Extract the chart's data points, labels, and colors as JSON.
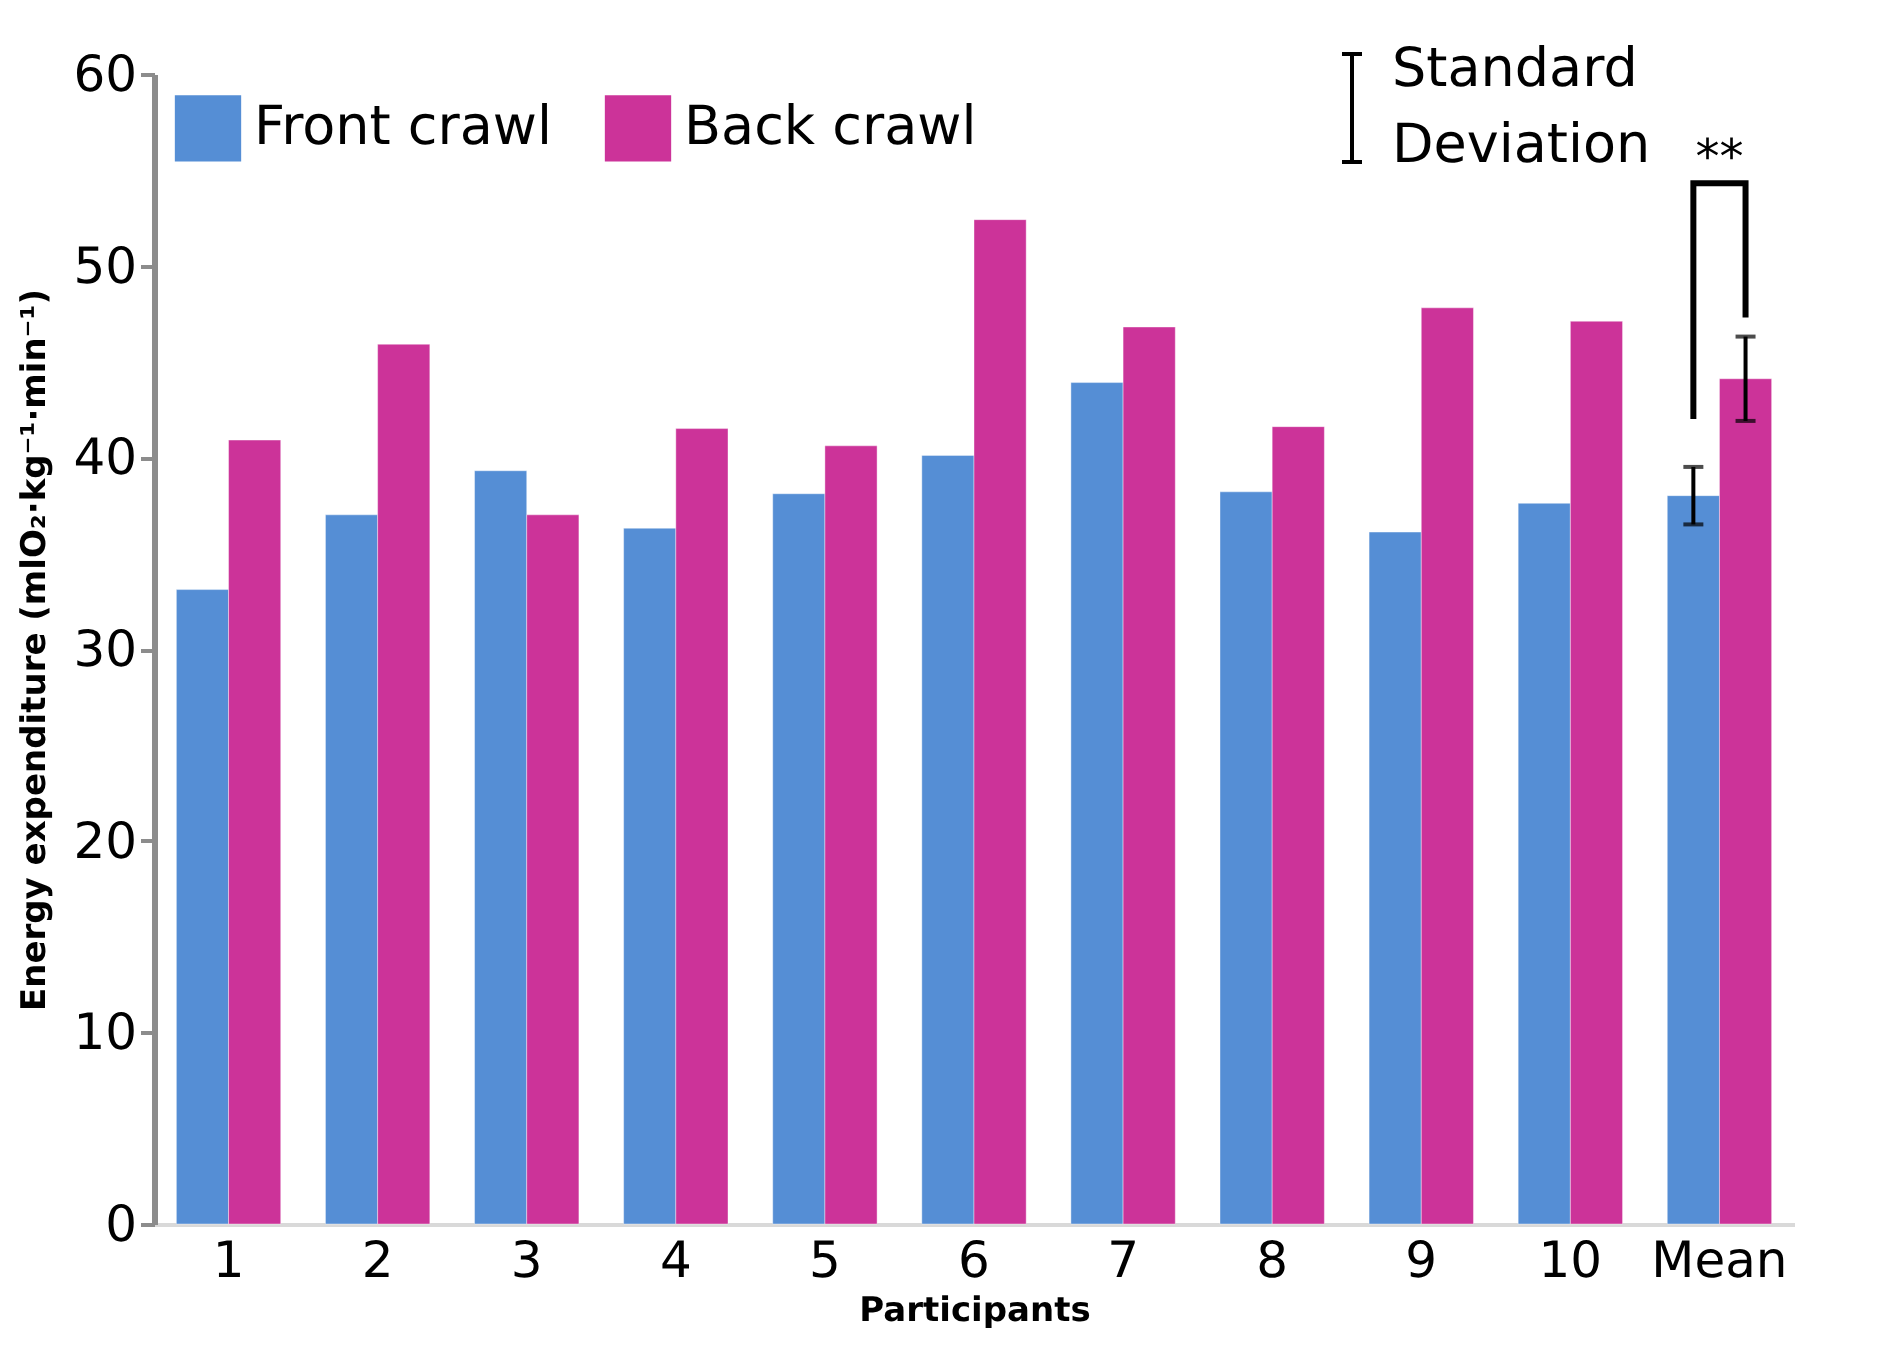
{
  "chart_data": {
    "type": "bar",
    "xlabel": "Participants",
    "ylabel": "Energy expenditure (mlO₂·kg⁻¹·min⁻¹)",
    "categories": [
      "1",
      "2",
      "3",
      "4",
      "5",
      "6",
      "7",
      "8",
      "9",
      "10",
      "Mean"
    ],
    "series": [
      {
        "name": "Front crawl",
        "color": "#558ed5",
        "values": [
          33.1,
          37.0,
          39.3,
          36.3,
          38.1,
          40.1,
          43.9,
          38.2,
          36.1,
          37.6,
          38.0
        ],
        "errors": [
          null,
          null,
          null,
          null,
          null,
          null,
          null,
          null,
          null,
          null,
          1.5
        ]
      },
      {
        "name": "Back crawl",
        "color": "#cc3399",
        "values": [
          40.9,
          45.9,
          37.0,
          41.5,
          40.6,
          52.4,
          46.8,
          41.6,
          47.8,
          47.1,
          44.1
        ],
        "errors": [
          null,
          null,
          null,
          null,
          null,
          null,
          null,
          null,
          null,
          null,
          2.2
        ]
      }
    ],
    "ylim": [
      0,
      60
    ],
    "yticks": [
      0,
      10,
      20,
      30,
      40,
      50,
      60
    ],
    "grid": false,
    "legend": "top left",
    "annotations": [
      "Standard Deviation",
      "**"
    ]
  }
}
